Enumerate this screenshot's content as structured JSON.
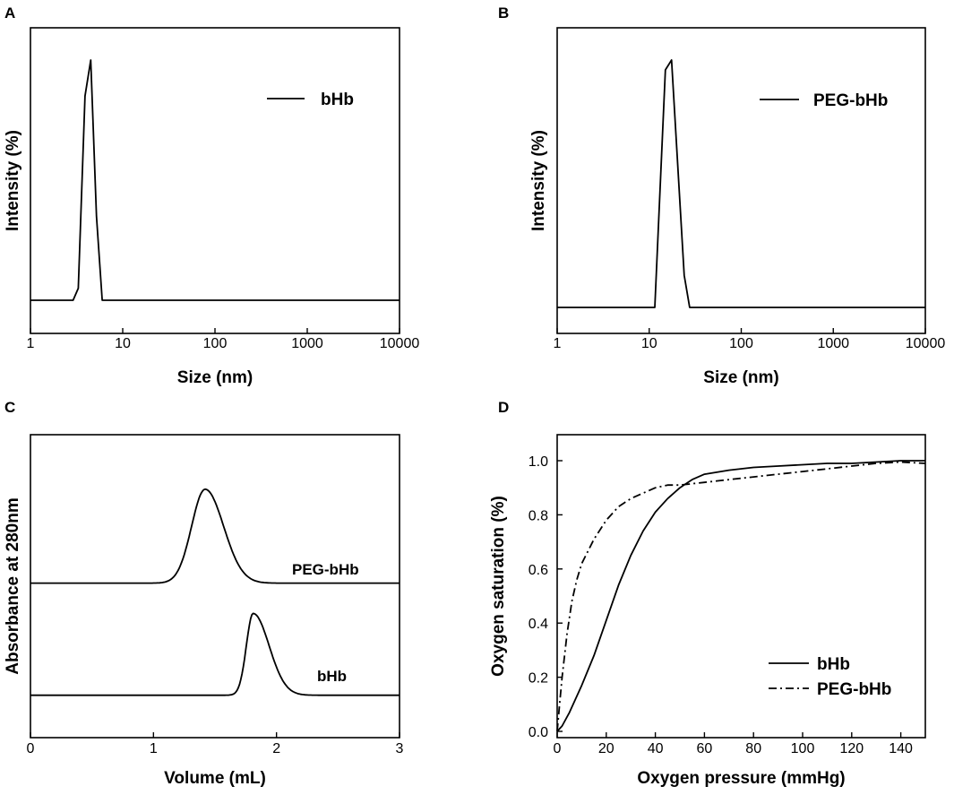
{
  "chart_data": [
    {
      "panel": "A",
      "type": "line",
      "xscale": "log",
      "xlim": [
        1,
        10000
      ],
      "xticks": [
        1,
        10,
        100,
        1000,
        10000
      ],
      "xtick_labels": [
        "1",
        "10",
        "100",
        "1000",
        "10000"
      ],
      "yticks": [],
      "xlabel": "Size (nm)",
      "ylabel": "Intensity (%)",
      "ylim": [
        0,
        100
      ],
      "legend": {
        "position": "top-right",
        "entries": [
          {
            "label": "bHb",
            "style": "solid"
          }
        ]
      },
      "series": [
        {
          "name": "bHb",
          "style": "solid",
          "x": [
            1,
            2.9,
            3.3,
            3.9,
            4.5,
            5.2,
            6.0,
            10000
          ],
          "y": [
            0,
            0,
            5,
            85,
            100,
            35,
            0,
            0
          ]
        }
      ]
    },
    {
      "panel": "B",
      "type": "line",
      "xscale": "log",
      "xlim": [
        1,
        10000
      ],
      "xticks": [
        1,
        10,
        100,
        1000,
        10000
      ],
      "xtick_labels": [
        "1",
        "10",
        "100",
        "1000",
        "10000"
      ],
      "yticks": [],
      "xlabel": "Size (nm)",
      "ylabel": "Intensity (%)",
      "ylim": [
        0,
        100
      ],
      "legend": {
        "position": "top-right",
        "entries": [
          {
            "label": "PEG-bHb",
            "style": "solid"
          }
        ]
      },
      "series": [
        {
          "name": "PEG-bHb",
          "style": "solid",
          "x": [
            1,
            11.5,
            15.0,
            17.5,
            24.0,
            27.5,
            10000
          ],
          "y": [
            0,
            0,
            96,
            100,
            13,
            0,
            0
          ]
        }
      ]
    },
    {
      "panel": "C",
      "type": "line",
      "xlim": [
        0,
        3
      ],
      "xticks": [
        0,
        1,
        2,
        3
      ],
      "xtick_labels": [
        "0",
        "1",
        "2",
        "3"
      ],
      "yticks": [],
      "xlabel": "Volume (mL)",
      "ylabel": "Absorbance at 280nm",
      "ylim": [
        0,
        100
      ],
      "annotations": [
        "PEG-bHb",
        "bHb"
      ],
      "series": [
        {
          "name": "PEG-bHb",
          "style": "solid",
          "baseline": 51,
          "peak_x": 1.42,
          "peak_height": 31,
          "sigma_left": 0.11,
          "sigma_right": 0.15,
          "x_start": 0,
          "x_end": 3
        },
        {
          "name": "bHb",
          "style": "solid",
          "baseline": 14,
          "peak_x": 1.81,
          "peak_height": 27,
          "sigma_left": 0.055,
          "sigma_right": 0.13,
          "x_start": 0,
          "x_end": 3
        }
      ]
    },
    {
      "panel": "D",
      "type": "line",
      "xlim": [
        0,
        150
      ],
      "ylim": [
        0,
        1.1
      ],
      "xticks": [
        0,
        20,
        40,
        60,
        80,
        100,
        120,
        140
      ],
      "xtick_labels": [
        "0",
        "20",
        "40",
        "60",
        "80",
        "100",
        "120",
        "140"
      ],
      "yticks": [
        0,
        0.2,
        0.4,
        0.6,
        0.8,
        1.0
      ],
      "ytick_labels": [
        "0.0",
        "0.2",
        "0.4",
        "0.6",
        "0.8",
        "1.0"
      ],
      "xlabel": "Oxygen pressure (mmHg)",
      "ylabel": "Oxygen saturation (%)",
      "legend": {
        "position": "bottom-right",
        "entries": [
          {
            "label": "bHb",
            "style": "solid"
          },
          {
            "label": "PEG-bHb",
            "style": "dashdot"
          }
        ]
      },
      "series": [
        {
          "name": "bHb",
          "style": "solid",
          "x": [
            0,
            2,
            5,
            10,
            15,
            20,
            25,
            30,
            35,
            40,
            45,
            50,
            55,
            60,
            70,
            80,
            90,
            100,
            110,
            120,
            130,
            140,
            150
          ],
          "y": [
            0.0,
            0.02,
            0.07,
            0.17,
            0.28,
            0.41,
            0.54,
            0.65,
            0.74,
            0.81,
            0.86,
            0.9,
            0.93,
            0.95,
            0.965,
            0.975,
            0.98,
            0.985,
            0.99,
            0.99,
            0.995,
            1.0,
            1.0
          ]
        },
        {
          "name": "PEG-bHb",
          "style": "dashdot",
          "x": [
            0,
            1,
            2,
            4,
            6,
            8,
            10,
            15,
            20,
            25,
            30,
            35,
            40,
            45,
            50,
            55,
            60,
            70,
            80,
            90,
            100,
            110,
            120,
            130,
            140,
            150
          ],
          "y": [
            0.0,
            0.1,
            0.2,
            0.36,
            0.48,
            0.56,
            0.62,
            0.71,
            0.78,
            0.83,
            0.86,
            0.88,
            0.9,
            0.91,
            0.91,
            0.915,
            0.92,
            0.93,
            0.94,
            0.95,
            0.96,
            0.97,
            0.98,
            0.99,
            0.995,
            0.99
          ]
        }
      ]
    }
  ]
}
